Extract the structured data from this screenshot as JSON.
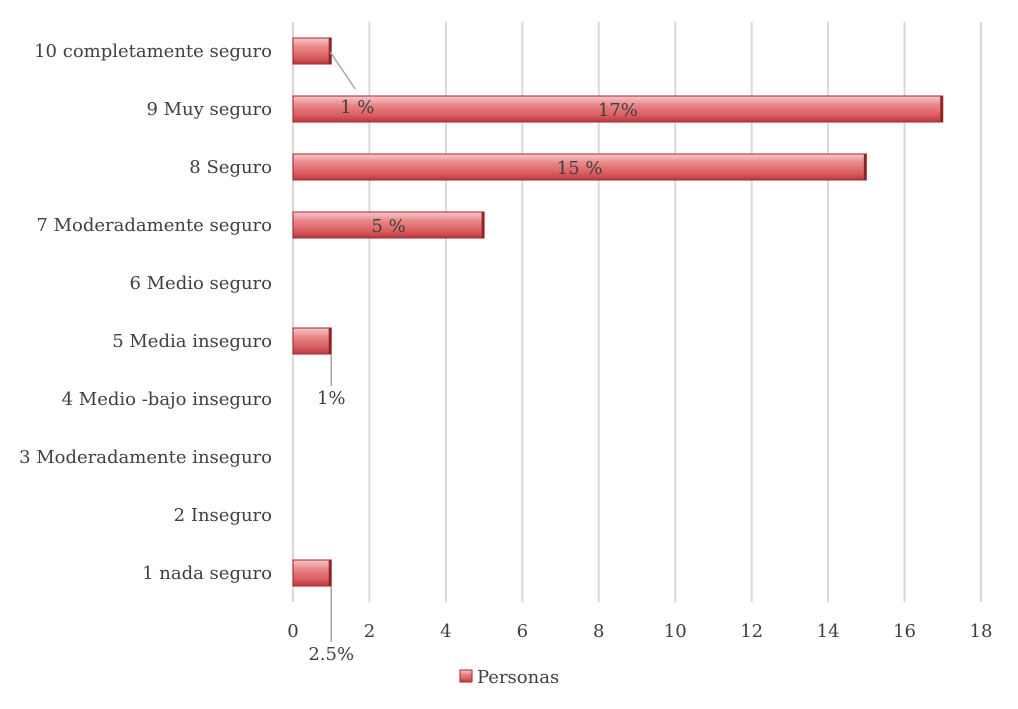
{
  "chart_data": {
    "type": "bar",
    "orientation": "horizontal",
    "categories": [
      "10 completamente seguro",
      "9 Muy seguro",
      "8 Seguro",
      "7 Moderadamente seguro",
      "6 Medio seguro",
      "5 Media inseguro",
      "4 Medio -bajo inseguro",
      "3 Moderadamente  inseguro",
      "2 Inseguro",
      "1 nada seguro"
    ],
    "series": [
      {
        "name": "Personas",
        "values": [
          1,
          17,
          15,
          5,
          0,
          1,
          0,
          0,
          0,
          1
        ]
      }
    ],
    "data_labels": [
      "1 %",
      "17%",
      "15 %",
      "5 %",
      "",
      "1%",
      "",
      "",
      "",
      "2.5%"
    ],
    "xlim": [
      0,
      18
    ],
    "xticks": [
      0,
      2,
      4,
      6,
      8,
      10,
      12,
      14,
      16,
      18
    ],
    "grid": "vertical",
    "legend_position": "bottom",
    "bar_color": "#e0676b",
    "title": "",
    "xlabel": "",
    "ylabel": ""
  }
}
